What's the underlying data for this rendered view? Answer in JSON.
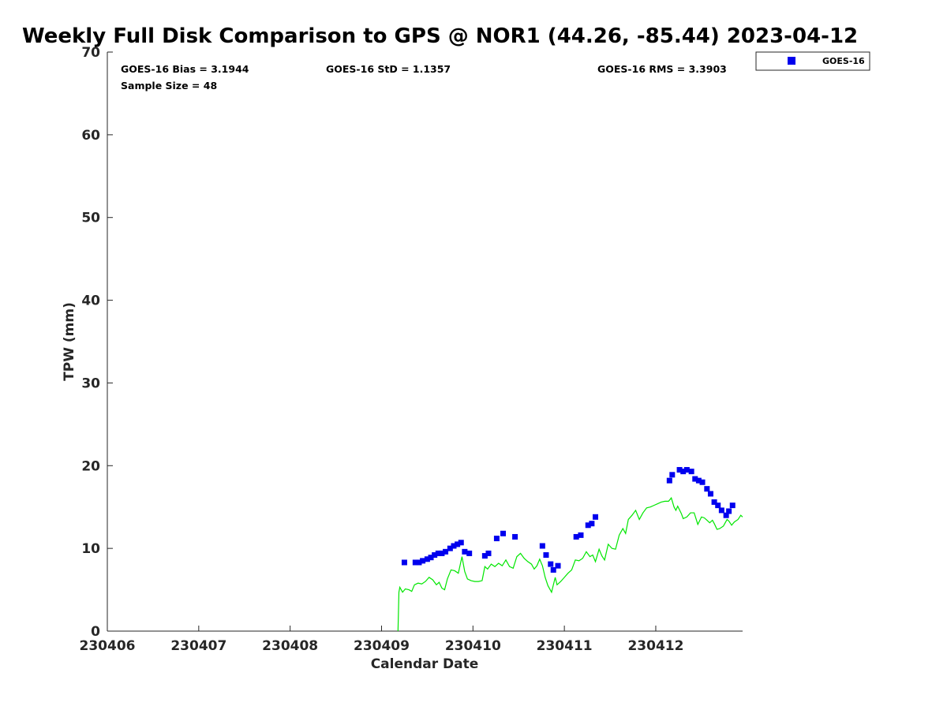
{
  "chart_data": {
    "type": "scatter",
    "title": "Weekly Full Disk Comparison to GPS @ NOR1 (44.26, -85.44) 2023-04-12",
    "xlabel": "Calendar Date",
    "ylabel": "TPW (mm)",
    "xlim": [
      230406,
      230412.95
    ],
    "ylim": [
      0,
      70
    ],
    "x_ticks": [
      "230406",
      "230407",
      "230408",
      "230409",
      "230410",
      "230411",
      "230412"
    ],
    "y_ticks": [
      "0",
      "10",
      "20",
      "30",
      "40",
      "50",
      "60",
      "70"
    ],
    "grid": false,
    "legend": {
      "placement": "top-right, outside plot",
      "entries": [
        "GOES-16"
      ]
    },
    "stats": {
      "bias": "GOES-16 Bias = 3.1944",
      "std": "GOES-16 StD = 1.1357",
      "rms": "GOES-16 RMS = 3.3903",
      "sample_size": "Sample Size = 48"
    },
    "series": [
      {
        "name": "GOES-16",
        "type": "scatter",
        "color": "#0000ee",
        "marker": "square",
        "points": [
          [
            230409.25,
            8.3
          ],
          [
            230409.37,
            8.3
          ],
          [
            230409.41,
            8.3
          ],
          [
            230409.45,
            8.5
          ],
          [
            230409.5,
            8.7
          ],
          [
            230409.54,
            8.9
          ],
          [
            230409.58,
            9.2
          ],
          [
            230409.62,
            9.4
          ],
          [
            230409.66,
            9.4
          ],
          [
            230409.7,
            9.6
          ],
          [
            230409.75,
            10.0
          ],
          [
            230409.79,
            10.3
          ],
          [
            230409.83,
            10.5
          ],
          [
            230409.87,
            10.7
          ],
          [
            230409.91,
            9.6
          ],
          [
            230409.96,
            9.4
          ],
          [
            230410.13,
            9.1
          ],
          [
            230410.17,
            9.4
          ],
          [
            230410.26,
            11.2
          ],
          [
            230410.33,
            11.8
          ],
          [
            230410.46,
            11.4
          ],
          [
            230410.76,
            10.3
          ],
          [
            230410.8,
            9.2
          ],
          [
            230410.85,
            8.1
          ],
          [
            230410.88,
            7.4
          ],
          [
            230410.93,
            7.9
          ],
          [
            230411.13,
            11.4
          ],
          [
            230411.18,
            11.6
          ],
          [
            230411.26,
            12.8
          ],
          [
            230411.3,
            13.0
          ],
          [
            230411.34,
            13.8
          ],
          [
            230412.15,
            18.2
          ],
          [
            230412.18,
            18.9
          ],
          [
            230412.26,
            19.5
          ],
          [
            230412.3,
            19.3
          ],
          [
            230412.34,
            19.5
          ],
          [
            230412.39,
            19.3
          ],
          [
            230412.43,
            18.4
          ],
          [
            230412.47,
            18.2
          ],
          [
            230412.51,
            18.0
          ],
          [
            230412.56,
            17.2
          ],
          [
            230412.6,
            16.6
          ],
          [
            230412.64,
            15.6
          ],
          [
            230412.68,
            15.2
          ],
          [
            230412.72,
            14.6
          ],
          [
            230412.77,
            14.0
          ],
          [
            230412.8,
            14.5
          ],
          [
            230412.84,
            15.2
          ]
        ]
      },
      {
        "name": "",
        "type": "line",
        "color": "#00e600",
        "points": [
          [
            230409.18,
            0
          ],
          [
            230409.19,
            4.7
          ],
          [
            230409.2,
            5.3
          ],
          [
            230409.23,
            4.7
          ],
          [
            230409.26,
            5.1
          ],
          [
            230409.3,
            5.0
          ],
          [
            230409.33,
            4.8
          ],
          [
            230409.36,
            5.6
          ],
          [
            230409.4,
            5.8
          ],
          [
            230409.44,
            5.7
          ],
          [
            230409.48,
            6.0
          ],
          [
            230409.52,
            6.5
          ],
          [
            230409.56,
            6.2
          ],
          [
            230409.6,
            5.6
          ],
          [
            230409.63,
            5.9
          ],
          [
            230409.66,
            5.2
          ],
          [
            230409.69,
            5.0
          ],
          [
            230409.72,
            6.3
          ],
          [
            230409.76,
            7.4
          ],
          [
            230409.8,
            7.3
          ],
          [
            230409.84,
            7.0
          ],
          [
            230409.88,
            9.0
          ],
          [
            230409.91,
            7.2
          ],
          [
            230409.94,
            6.3
          ],
          [
            230409.98,
            6.1
          ],
          [
            230410.02,
            6.0
          ],
          [
            230410.06,
            6.0
          ],
          [
            230410.1,
            6.1
          ],
          [
            230410.13,
            7.8
          ],
          [
            230410.16,
            7.5
          ],
          [
            230410.2,
            8.1
          ],
          [
            230410.24,
            7.8
          ],
          [
            230410.28,
            8.2
          ],
          [
            230410.32,
            7.9
          ],
          [
            230410.36,
            8.6
          ],
          [
            230410.4,
            7.8
          ],
          [
            230410.44,
            7.6
          ],
          [
            230410.48,
            9.0
          ],
          [
            230410.52,
            9.4
          ],
          [
            230410.56,
            8.8
          ],
          [
            230410.6,
            8.4
          ],
          [
            230410.64,
            8.1
          ],
          [
            230410.67,
            7.5
          ],
          [
            230410.7,
            7.9
          ],
          [
            230410.73,
            8.7
          ],
          [
            230410.76,
            7.9
          ],
          [
            230410.79,
            6.5
          ],
          [
            230410.82,
            5.5
          ],
          [
            230410.86,
            4.7
          ],
          [
            230410.9,
            6.5
          ],
          [
            230410.92,
            5.6
          ],
          [
            230410.96,
            6.0
          ],
          [
            230411.0,
            6.5
          ],
          [
            230411.04,
            7.0
          ],
          [
            230411.08,
            7.4
          ],
          [
            230411.12,
            8.6
          ],
          [
            230411.16,
            8.5
          ],
          [
            230411.2,
            8.8
          ],
          [
            230411.24,
            9.6
          ],
          [
            230411.28,
            9.0
          ],
          [
            230411.31,
            9.2
          ],
          [
            230411.34,
            8.4
          ],
          [
            230411.38,
            9.9
          ],
          [
            230411.41,
            9.1
          ],
          [
            230411.44,
            8.6
          ],
          [
            230411.48,
            10.5
          ],
          [
            230411.52,
            10.0
          ],
          [
            230411.56,
            9.9
          ],
          [
            230411.6,
            11.6
          ],
          [
            230411.64,
            12.4
          ],
          [
            230411.67,
            11.8
          ],
          [
            230411.7,
            13.5
          ],
          [
            230411.74,
            14.0
          ],
          [
            230411.78,
            14.6
          ],
          [
            230411.82,
            13.5
          ],
          [
            230411.86,
            14.3
          ],
          [
            230411.9,
            14.9
          ],
          [
            230411.94,
            15.0
          ],
          [
            230411.98,
            15.2
          ],
          [
            230412.02,
            15.4
          ],
          [
            230412.06,
            15.6
          ],
          [
            230412.1,
            15.7
          ],
          [
            230412.14,
            15.7
          ],
          [
            230412.17,
            16.1
          ],
          [
            230412.2,
            15.0
          ],
          [
            230412.22,
            14.6
          ],
          [
            230412.24,
            15.1
          ],
          [
            230412.28,
            14.2
          ],
          [
            230412.3,
            13.6
          ],
          [
            230412.34,
            13.8
          ],
          [
            230412.38,
            14.3
          ],
          [
            230412.42,
            14.3
          ],
          [
            230412.44,
            13.6
          ],
          [
            230412.46,
            12.9
          ],
          [
            230412.5,
            13.8
          ],
          [
            230412.53,
            13.7
          ],
          [
            230412.56,
            13.4
          ],
          [
            230412.59,
            13.1
          ],
          [
            230412.62,
            13.4
          ],
          [
            230412.64,
            13.0
          ],
          [
            230412.67,
            12.3
          ],
          [
            230412.7,
            12.4
          ],
          [
            230412.74,
            12.7
          ],
          [
            230412.78,
            13.5
          ],
          [
            230412.8,
            13.3
          ],
          [
            230412.83,
            12.8
          ],
          [
            230412.86,
            13.2
          ],
          [
            230412.9,
            13.5
          ],
          [
            230412.93,
            14.0
          ],
          [
            230412.95,
            13.8
          ]
        ]
      }
    ]
  }
}
